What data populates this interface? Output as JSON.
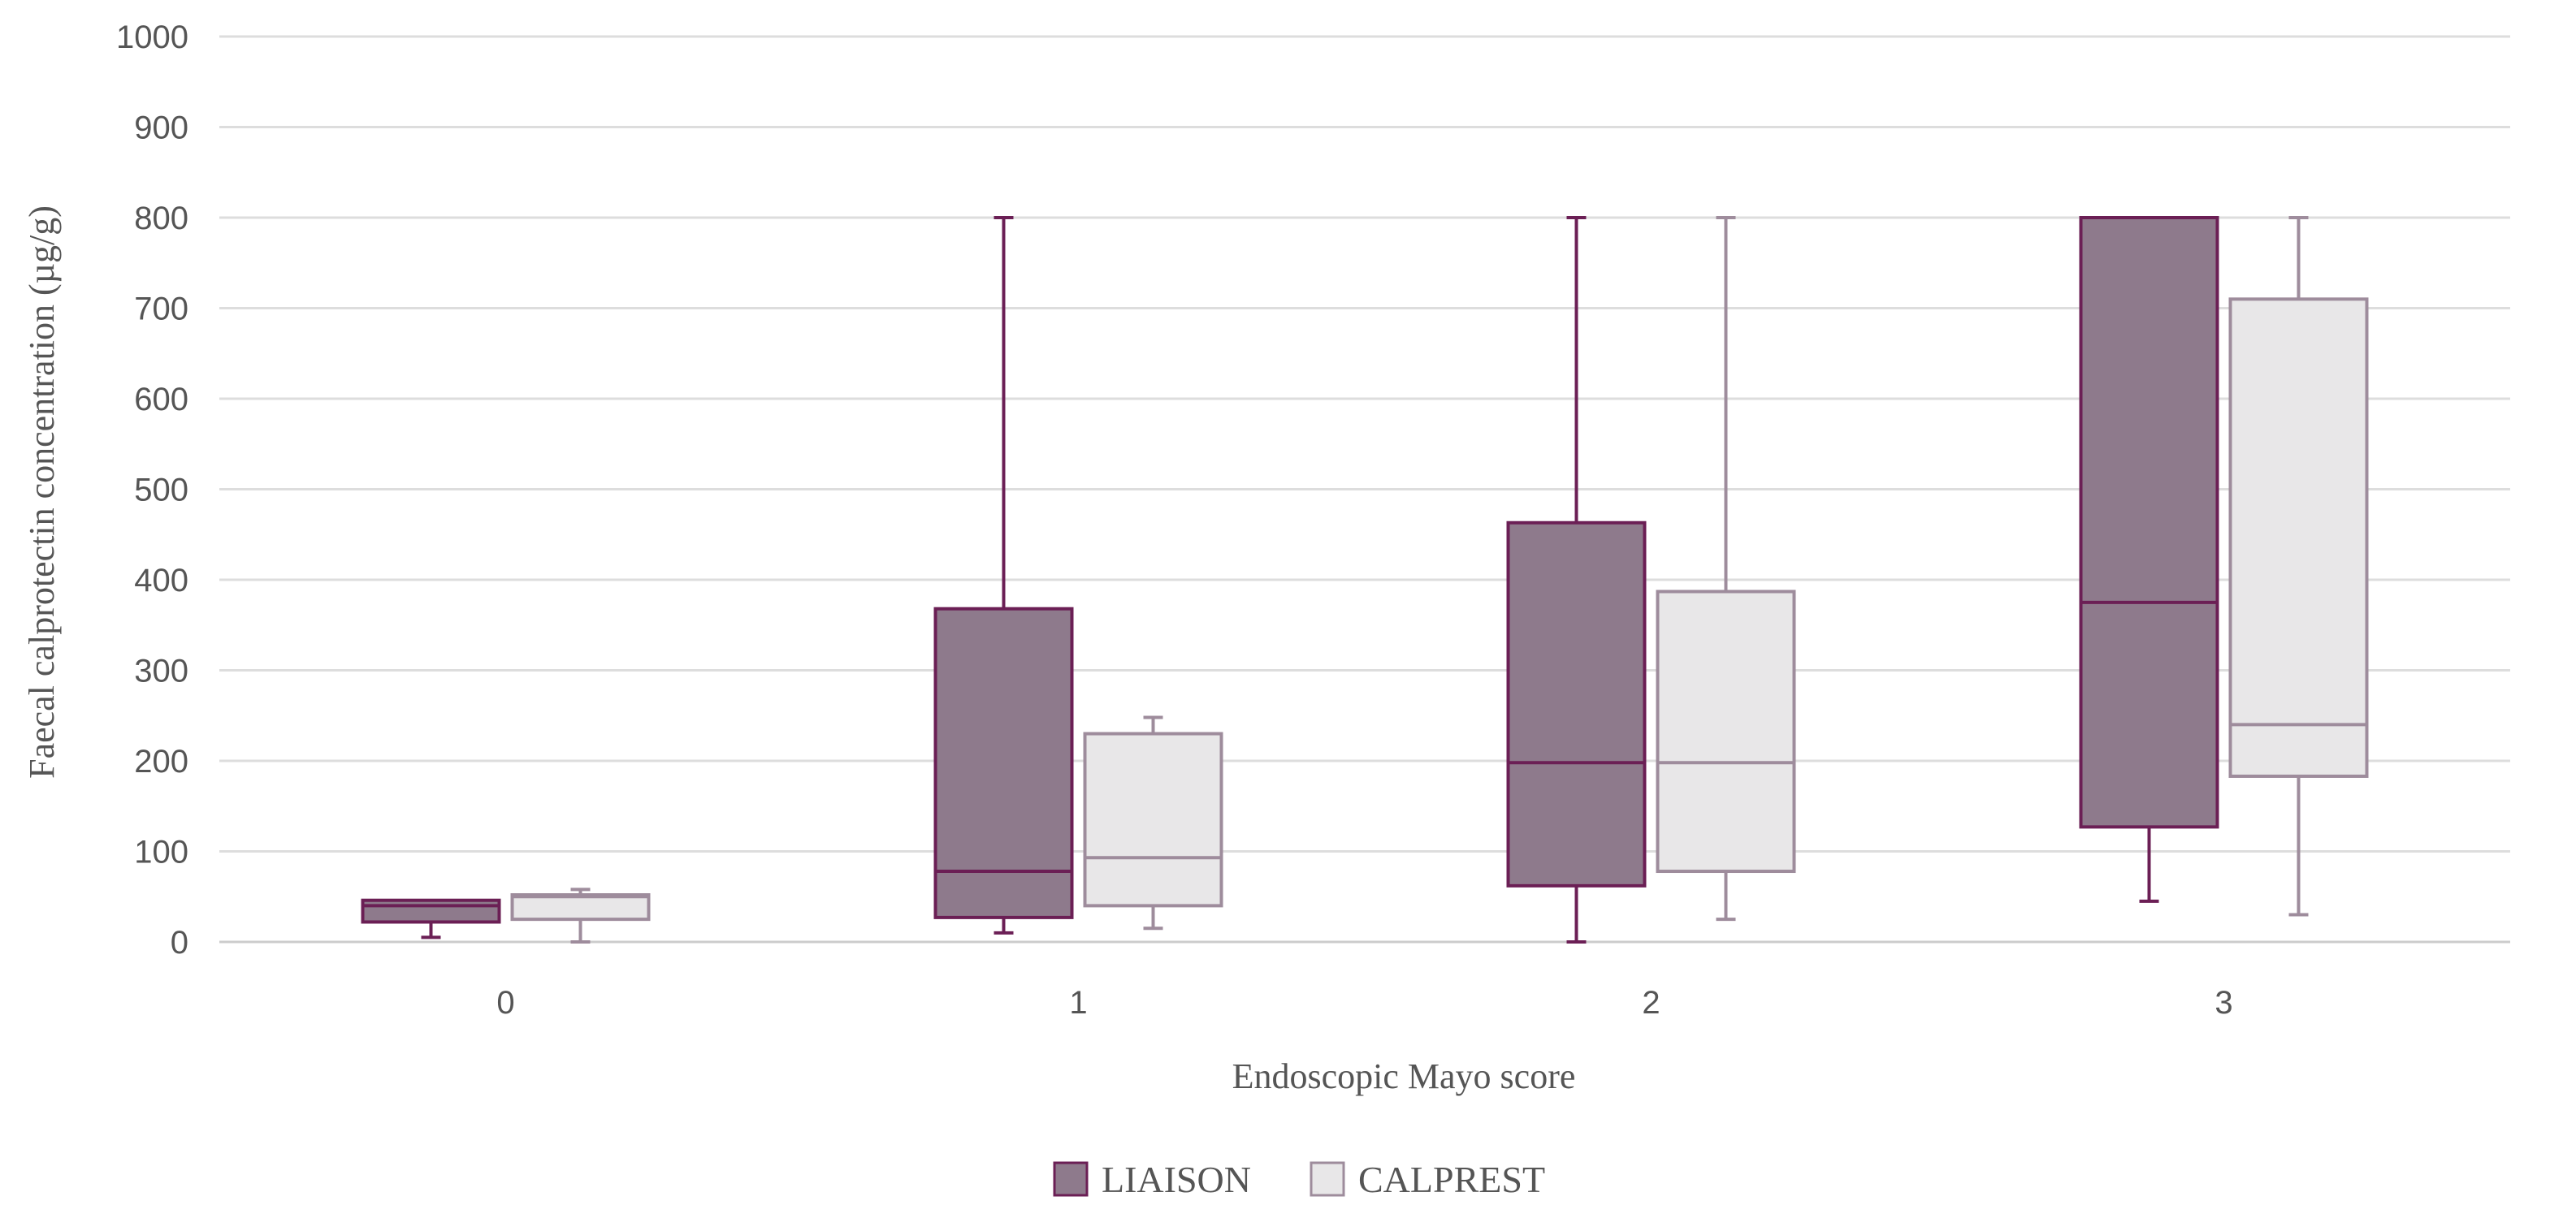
{
  "chart_data": {
    "type": "box",
    "title": "",
    "xlabel": "Endoscopic Mayo score",
    "ylabel": "Faecal calprotectin concentration (µg/g)",
    "categories": [
      "0",
      "1",
      "2",
      "3"
    ],
    "ylim": [
      0,
      1000
    ],
    "yticks": [
      "0",
      "100",
      "200",
      "300",
      "400",
      "500",
      "600",
      "700",
      "800",
      "900",
      "1000"
    ],
    "grid": true,
    "legend_position": "bottom",
    "series": [
      {
        "name": "LIAISON",
        "fill": "#8e7a8c",
        "stroke": "#6b1f55",
        "boxes": [
          {
            "min": 5,
            "q1": 22,
            "median": 40,
            "q3": 46,
            "max": 46
          },
          {
            "min": 10,
            "q1": 27,
            "median": 78,
            "q3": 368,
            "max": 800
          },
          {
            "min": 0,
            "q1": 62,
            "median": 198,
            "q3": 463,
            "max": 800
          },
          {
            "min": 45,
            "q1": 127,
            "median": 375,
            "q3": 800,
            "max": 800
          }
        ]
      },
      {
        "name": "CALPREST",
        "fill": "#e8e7e8",
        "stroke": "#9e8c9c",
        "boxes": [
          {
            "min": 0,
            "q1": 25,
            "median": 50,
            "q3": 52,
            "max": 58
          },
          {
            "min": 15,
            "q1": 40,
            "median": 93,
            "q3": 230,
            "max": 248
          },
          {
            "min": 25,
            "q1": 78,
            "median": 198,
            "q3": 387,
            "max": 800
          },
          {
            "min": 30,
            "q1": 183,
            "median": 240,
            "q3": 710,
            "max": 800
          }
        ]
      }
    ]
  }
}
